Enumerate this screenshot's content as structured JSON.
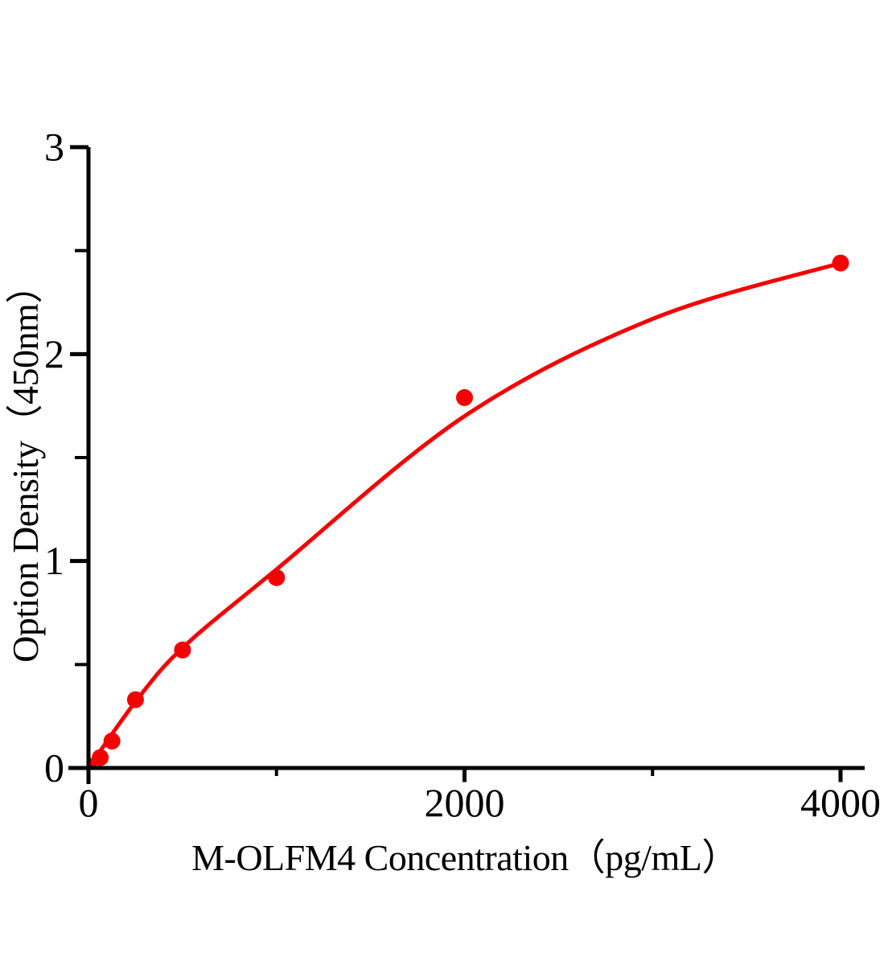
{
  "chart_data": {
    "type": "scatter",
    "title": "",
    "xlabel": "M-OLFM4 Concentration（pg/mL）",
    "ylabel": "Option Density（450nm）",
    "xlim": [
      0,
      4000
    ],
    "ylim": [
      0,
      3
    ],
    "grid": false,
    "legend": "none",
    "colors": {
      "series": "#f40000",
      "axis": "#000000",
      "background": "#ffffff"
    },
    "x_ticks": {
      "major": [
        {
          "value": 0,
          "label": "0"
        },
        {
          "value": 2000,
          "label": "2000"
        },
        {
          "value": 4000,
          "label": "4000"
        }
      ],
      "minor": [
        1000,
        3000
      ]
    },
    "y_ticks": {
      "major": [
        {
          "value": 0,
          "label": "0"
        },
        {
          "value": 1,
          "label": "1"
        },
        {
          "value": 2,
          "label": "2"
        },
        {
          "value": 3,
          "label": "3"
        }
      ],
      "minor": [
        0.5,
        1.5,
        2.5
      ]
    },
    "series": [
      {
        "name": "standard-points",
        "type": "scatter",
        "marker": "circle",
        "color": "#f40000",
        "x": [
          0,
          62.5,
          125,
          250,
          500,
          1000,
          2000,
          4000
        ],
        "y": [
          0.01,
          0.05,
          0.13,
          0.33,
          0.57,
          0.92,
          1.79,
          2.44
        ]
      },
      {
        "name": "fit-curve",
        "type": "line",
        "color": "#f40000",
        "x": [
          0,
          250,
          500,
          1000,
          2000,
          3000,
          4000
        ],
        "y": [
          0.0,
          0.32,
          0.58,
          0.96,
          1.7,
          2.17,
          2.44
        ]
      }
    ]
  }
}
